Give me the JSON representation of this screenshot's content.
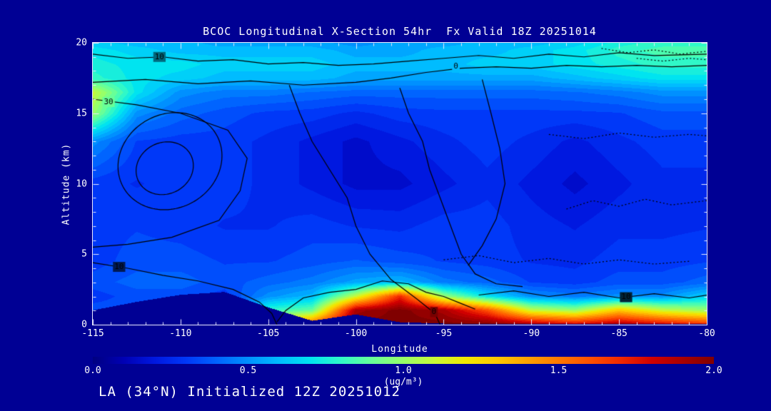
{
  "window": {
    "background": "#000094",
    "text_color": "#FFFFFF"
  },
  "title": "BCOC Longitudinal X-Section 54hr  Fx Valid 18Z 20251014",
  "footer": "LA (34°N) Initialized 12Z 20251012",
  "chart_data": {
    "type": "heatmap",
    "title": "BCOC Longitudinal X-Section 54hr  Fx Valid 18Z 20251014",
    "xlabel": "Longitude",
    "ylabel": "Altitude (km)",
    "xlim": [
      -115,
      -80
    ],
    "ylim": [
      0,
      20
    ],
    "x_ticks": [
      -115,
      -110,
      -105,
      -100,
      -95,
      -90,
      -85,
      -80
    ],
    "x_minor_step": 1,
    "y_ticks": [
      0,
      5,
      10,
      15,
      20
    ],
    "y_minor_step": 1,
    "band_step": 0.05,
    "colorbar": {
      "min": 0,
      "max": 2,
      "ticks": [
        "0.0",
        "0.5",
        "1.0",
        "1.5",
        "2.0"
      ],
      "label": "(ug/m³)"
    },
    "colormap": [
      [
        0.0,
        "#000080"
      ],
      [
        0.1,
        "#0000B4"
      ],
      [
        0.2,
        "#0018E0"
      ],
      [
        0.3,
        "#0038F8"
      ],
      [
        0.4,
        "#0064FF"
      ],
      [
        0.5,
        "#0090FF"
      ],
      [
        0.6,
        "#00BCFF"
      ],
      [
        0.7,
        "#00E4F0"
      ],
      [
        0.8,
        "#30F8C8"
      ],
      [
        0.9,
        "#68FF98"
      ],
      [
        1.0,
        "#98FF68"
      ],
      [
        1.1,
        "#C8F838"
      ],
      [
        1.2,
        "#F0E800"
      ],
      [
        1.3,
        "#FFC800"
      ],
      [
        1.4,
        "#FFA000"
      ],
      [
        1.5,
        "#FF7800"
      ],
      [
        1.6,
        "#FF5000"
      ],
      [
        1.7,
        "#F02800"
      ],
      [
        1.8,
        "#D00000"
      ],
      [
        1.9,
        "#A80000"
      ],
      [
        2.0,
        "#800000"
      ]
    ],
    "grid": {
      "lons": [
        -115,
        -112.5,
        -110,
        -107.5,
        -105,
        -102.5,
        -100,
        -97.5,
        -95,
        -92.5,
        -90,
        -87.5,
        -85,
        -82.5,
        -80
      ],
      "alts": [
        0,
        1,
        2,
        3,
        4.5,
        7,
        10,
        13,
        15,
        16.5,
        17.5,
        18.5,
        19.5,
        20
      ],
      "values_ug_m3": [
        [
          0.35,
          0.35,
          0.35,
          0.35,
          1.2,
          1.6,
          2.0,
          2.0,
          2.0,
          2.0,
          1.9,
          1.8,
          1.9,
          1.8,
          1.7
        ],
        [
          0.35,
          0.35,
          0.35,
          0.35,
          0.8,
          0.9,
          1.9,
          2.0,
          1.9,
          1.6,
          1.1,
          1.0,
          1.3,
          1.1,
          1.0
        ],
        [
          0.3,
          0.35,
          0.35,
          0.3,
          0.5,
          0.6,
          1.1,
          1.7,
          1.0,
          0.7,
          0.5,
          0.45,
          0.5,
          0.5,
          0.65
        ],
        [
          0.35,
          0.4,
          0.4,
          0.35,
          0.4,
          0.45,
          0.55,
          0.6,
          0.45,
          0.4,
          0.32,
          0.3,
          0.35,
          0.35,
          0.4
        ],
        [
          0.3,
          0.35,
          0.35,
          0.32,
          0.32,
          0.35,
          0.38,
          0.35,
          0.32,
          0.3,
          0.27,
          0.26,
          0.3,
          0.3,
          0.32
        ],
        [
          0.3,
          0.32,
          0.3,
          0.27,
          0.27,
          0.3,
          0.27,
          0.26,
          0.3,
          0.3,
          0.25,
          0.22,
          0.26,
          0.26,
          0.27
        ],
        [
          0.3,
          0.27,
          0.3,
          0.3,
          0.26,
          0.21,
          0.16,
          0.16,
          0.21,
          0.26,
          0.21,
          0.16,
          0.21,
          0.26,
          0.26
        ],
        [
          0.5,
          0.32,
          0.3,
          0.3,
          0.26,
          0.21,
          0.16,
          0.21,
          0.26,
          0.3,
          0.26,
          0.21,
          0.26,
          0.3,
          0.3
        ],
        [
          1.0,
          0.5,
          0.4,
          0.35,
          0.31,
          0.3,
          0.26,
          0.3,
          0.31,
          0.31,
          0.31,
          0.31,
          0.32,
          0.36,
          0.36
        ],
        [
          1.1,
          0.7,
          0.5,
          0.45,
          0.45,
          0.42,
          0.4,
          0.4,
          0.4,
          0.4,
          0.4,
          0.42,
          0.45,
          0.5,
          0.5
        ],
        [
          0.8,
          0.7,
          0.65,
          0.6,
          0.6,
          0.6,
          0.55,
          0.55,
          0.55,
          0.55,
          0.55,
          0.6,
          0.65,
          0.7,
          0.7
        ],
        [
          0.75,
          0.7,
          0.7,
          0.65,
          0.65,
          0.65,
          0.6,
          0.6,
          0.6,
          0.65,
          0.65,
          0.7,
          0.75,
          0.8,
          0.8
        ],
        [
          0.7,
          0.65,
          0.6,
          0.6,
          0.6,
          0.6,
          0.55,
          0.55,
          0.6,
          0.6,
          0.65,
          0.7,
          0.8,
          0.85,
          0.85
        ],
        [
          0.65,
          0.6,
          0.6,
          0.55,
          0.55,
          0.55,
          0.5,
          0.55,
          0.55,
          0.6,
          0.6,
          0.65,
          0.75,
          0.8,
          0.8
        ]
      ]
    },
    "terrain": {
      "lons": [
        -115,
        -112.5,
        -110,
        -107.5,
        -105,
        -102.5,
        -100,
        -97.5,
        -95,
        -92.5,
        -90,
        -87.5,
        -85,
        -82.5,
        -80
      ],
      "heights_km": [
        1.0,
        1.6,
        2.1,
        2.3,
        1.2,
        0.25,
        0.7,
        0.15,
        0.05,
        0.05,
        0.05,
        0.05,
        0.05,
        0.05,
        0.05
      ]
    },
    "contours": [
      {
        "style": "solid",
        "points": [
          [
            -115,
            19.2
          ],
          [
            -113,
            18.9
          ],
          [
            -111,
            19.0
          ],
          [
            -109,
            18.7
          ],
          [
            -107,
            18.8
          ],
          [
            -105,
            18.5
          ],
          [
            -103,
            18.6
          ],
          [
            -101,
            18.4
          ],
          [
            -99,
            18.5
          ],
          [
            -97,
            18.7
          ],
          [
            -95,
            18.9
          ],
          [
            -93,
            19.1
          ],
          [
            -91,
            18.9
          ],
          [
            -89,
            19.2
          ],
          [
            -87,
            19.0
          ],
          [
            -85,
            19.3
          ],
          [
            -83,
            19.1
          ],
          [
            -80,
            19.2
          ]
        ]
      },
      {
        "style": "solid",
        "points": [
          [
            -115,
            17.2
          ],
          [
            -112,
            17.4
          ],
          [
            -109,
            17.1
          ],
          [
            -106,
            17.3
          ],
          [
            -103,
            17.0
          ],
          [
            -100,
            17.2
          ],
          [
            -98,
            17.5
          ],
          [
            -96,
            17.9
          ],
          [
            -94,
            18.2
          ],
          [
            -92,
            18.3
          ],
          [
            -90,
            18.2
          ],
          [
            -88,
            18.4
          ],
          [
            -86,
            18.3
          ],
          [
            -84,
            18.4
          ],
          [
            -82,
            18.3
          ],
          [
            -80,
            18.4
          ]
        ]
      },
      {
        "style": "solid",
        "points": [
          [
            -115,
            16.0
          ],
          [
            -112.5,
            15.6
          ],
          [
            -110,
            15.0
          ],
          [
            -107.3,
            13.8
          ],
          [
            -106.2,
            11.8
          ],
          [
            -106.6,
            9.5
          ],
          [
            -107.8,
            7.4
          ],
          [
            -110.5,
            6.2
          ],
          [
            -113,
            5.7
          ],
          [
            -115,
            5.5
          ]
        ]
      },
      {
        "style": "solid",
        "ellipse": {
          "cx": -110.6,
          "cy": 11.6,
          "rx": 2.9,
          "ry": 3.5,
          "rot": -18
        }
      },
      {
        "style": "solid",
        "ellipse": {
          "cx": -110.9,
          "cy": 11.1,
          "rx": 1.6,
          "ry": 1.9,
          "rot": -18
        }
      },
      {
        "style": "solid",
        "points": [
          [
            -103.8,
            17.0
          ],
          [
            -103.2,
            15.0
          ],
          [
            -102.5,
            13.0
          ],
          [
            -101.5,
            11.0
          ],
          [
            -100.5,
            9.0
          ],
          [
            -100.0,
            7.0
          ],
          [
            -99.2,
            5.0
          ],
          [
            -98.0,
            3.2
          ],
          [
            -96.5,
            1.8
          ],
          [
            -95.5,
            0.8
          ],
          [
            -95.2,
            0.0
          ]
        ]
      },
      {
        "style": "solid",
        "points": [
          [
            -97.5,
            16.8
          ],
          [
            -97.0,
            15.0
          ],
          [
            -96.2,
            13.0
          ],
          [
            -95.8,
            11.0
          ],
          [
            -95.2,
            9.0
          ],
          [
            -94.6,
            7.0
          ],
          [
            -94.0,
            5.0
          ],
          [
            -93.2,
            3.6
          ],
          [
            -92.0,
            2.9
          ],
          [
            -90.5,
            2.7
          ]
        ]
      },
      {
        "style": "solid",
        "points": [
          [
            -92.8,
            17.4
          ],
          [
            -92.3,
            15.0
          ],
          [
            -91.8,
            12.5
          ],
          [
            -91.5,
            10.0
          ],
          [
            -92.0,
            7.5
          ],
          [
            -92.8,
            5.6
          ],
          [
            -93.6,
            4.2
          ]
        ]
      },
      {
        "style": "solid",
        "points": [
          [
            -115,
            4.4
          ],
          [
            -113,
            4.0
          ],
          [
            -111,
            3.5
          ],
          [
            -109,
            3.1
          ],
          [
            -107,
            2.5
          ],
          [
            -105.5,
            1.6
          ],
          [
            -104.8,
            0.8
          ],
          [
            -104.5,
            0.0
          ]
        ]
      },
      {
        "style": "solid",
        "points": [
          [
            -104.5,
            0.2
          ],
          [
            -104.0,
            1.0
          ],
          [
            -103.0,
            1.9
          ],
          [
            -101.5,
            2.3
          ],
          [
            -100.0,
            2.5
          ],
          [
            -98.5,
            3.1
          ],
          [
            -97.0,
            2.9
          ],
          [
            -96.0,
            2.3
          ],
          [
            -95.0,
            2.0
          ],
          [
            -94.0,
            1.5
          ],
          [
            -93.2,
            1.1
          ]
        ]
      },
      {
        "style": "solid",
        "points": [
          [
            -93,
            2.1
          ],
          [
            -91,
            2.4
          ],
          [
            -89,
            2.0
          ],
          [
            -87,
            2.3
          ],
          [
            -85,
            1.9
          ],
          [
            -83,
            2.2
          ],
          [
            -81,
            1.9
          ],
          [
            -80,
            2.1
          ]
        ]
      },
      {
        "style": "dashed",
        "points": [
          [
            -86,
            19.6
          ],
          [
            -84.5,
            19.3
          ],
          [
            -83,
            19.5
          ],
          [
            -81.5,
            19.2
          ],
          [
            -80,
            19.4
          ]
        ]
      },
      {
        "style": "dashed",
        "points": [
          [
            -84,
            18.9
          ],
          [
            -82.5,
            18.7
          ],
          [
            -81,
            18.9
          ],
          [
            -80,
            18.8
          ]
        ]
      },
      {
        "style": "dashed",
        "points": [
          [
            -88,
            8.2
          ],
          [
            -86.5,
            8.8
          ],
          [
            -85,
            8.4
          ],
          [
            -83.5,
            8.9
          ],
          [
            -82,
            8.5
          ],
          [
            -80,
            8.8
          ]
        ]
      },
      {
        "style": "dashed",
        "points": [
          [
            -95,
            4.6
          ],
          [
            -93,
            4.9
          ],
          [
            -91,
            4.4
          ],
          [
            -89,
            4.7
          ],
          [
            -87,
            4.3
          ],
          [
            -85,
            4.6
          ],
          [
            -83,
            4.3
          ],
          [
            -81,
            4.5
          ]
        ]
      },
      {
        "style": "dashed",
        "points": [
          [
            -89,
            13.5
          ],
          [
            -87,
            13.2
          ],
          [
            -85,
            13.6
          ],
          [
            -83,
            13.3
          ],
          [
            -81,
            13.5
          ],
          [
            -80,
            13.4
          ]
        ]
      }
    ],
    "contour_labels": [
      {
        "text": "10",
        "lon": -111.2,
        "alt": 19.0
      },
      {
        "text": "0",
        "lon": -94.3,
        "alt": 18.3
      },
      {
        "text": "30",
        "lon": -114.1,
        "alt": 15.8
      },
      {
        "text": "10",
        "lon": -113.5,
        "alt": 4.1
      },
      {
        "text": "0",
        "lon": -95.55,
        "alt": 0.9
      },
      {
        "text": "10",
        "lon": -84.6,
        "alt": 1.95
      }
    ]
  }
}
